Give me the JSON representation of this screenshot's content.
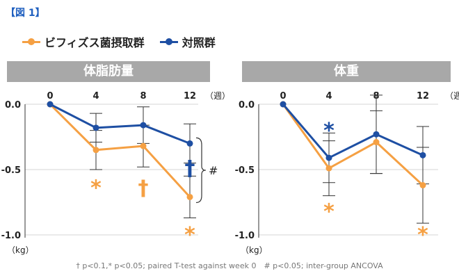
{
  "figure_label": "【図 1】",
  "legend": [
    {
      "name": "ビフィズス菌摂取群",
      "color": "#f5a043"
    },
    {
      "name": "対照群",
      "color": "#1e4fa3"
    }
  ],
  "footnote": "† p<0.1,* p<0.05; paired T-test against week 0　# p<0.05; inter-group ANCOVA",
  "chart_data": [
    {
      "type": "line",
      "title": "体脂肪量",
      "x": [
        0,
        4,
        8,
        12
      ],
      "x_unit": "（週）",
      "y_unit": "（kg）",
      "ylim": [
        -1.0,
        0.0
      ],
      "yticks": [
        "0.0",
        "-0.5",
        "-1.0"
      ],
      "series": [
        {
          "name": "ビフィズス菌摂取群",
          "color": "#f5a043",
          "values": [
            0.0,
            -0.35,
            -0.32,
            -0.71
          ],
          "err": [
            0,
            0.15,
            0.16,
            0.16
          ]
        },
        {
          "name": "対照群",
          "color": "#1e4fa3",
          "values": [
            0.0,
            -0.18,
            -0.16,
            -0.3
          ],
          "err": [
            0,
            0.11,
            0.14,
            0.15
          ]
        }
      ],
      "markers": [
        {
          "x": 4,
          "y": -0.62,
          "symbol": "*",
          "color": "#f5a043"
        },
        {
          "x": 8,
          "y": -0.64,
          "symbol": "†",
          "color": "#f5a043"
        },
        {
          "x": 12,
          "y": -0.49,
          "symbol": "†",
          "color": "#1e4fa3"
        },
        {
          "x": 12,
          "y": -0.98,
          "symbol": "*",
          "color": "#f5a043"
        }
      ],
      "bracket_label": "#"
    },
    {
      "type": "line",
      "title": "体重",
      "x": [
        0,
        4,
        8,
        12
      ],
      "x_unit": "（週）",
      "y_unit": "（kg）",
      "ylim": [
        -1.0,
        0.0
      ],
      "yticks": [
        "0.0",
        "-0.5",
        "-1.0"
      ],
      "series": [
        {
          "name": "ビフィズス菌摂取群",
          "color": "#f5a043",
          "values": [
            0.0,
            -0.49,
            -0.29,
            -0.62
          ],
          "err": [
            0,
            0.21,
            0.24,
            0.29
          ]
        },
        {
          "name": "対照群",
          "color": "#1e4fa3",
          "values": [
            0.0,
            -0.41,
            -0.23,
            -0.39
          ],
          "err": [
            0,
            0.19,
            0.3,
            0.22
          ]
        }
      ],
      "markers": [
        {
          "x": 4,
          "y": -0.18,
          "symbol": "*",
          "color": "#1e4fa3"
        },
        {
          "x": 4,
          "y": -0.8,
          "symbol": "*",
          "color": "#f5a043"
        },
        {
          "x": 12,
          "y": -0.98,
          "symbol": "*",
          "color": "#f5a043"
        }
      ]
    }
  ]
}
